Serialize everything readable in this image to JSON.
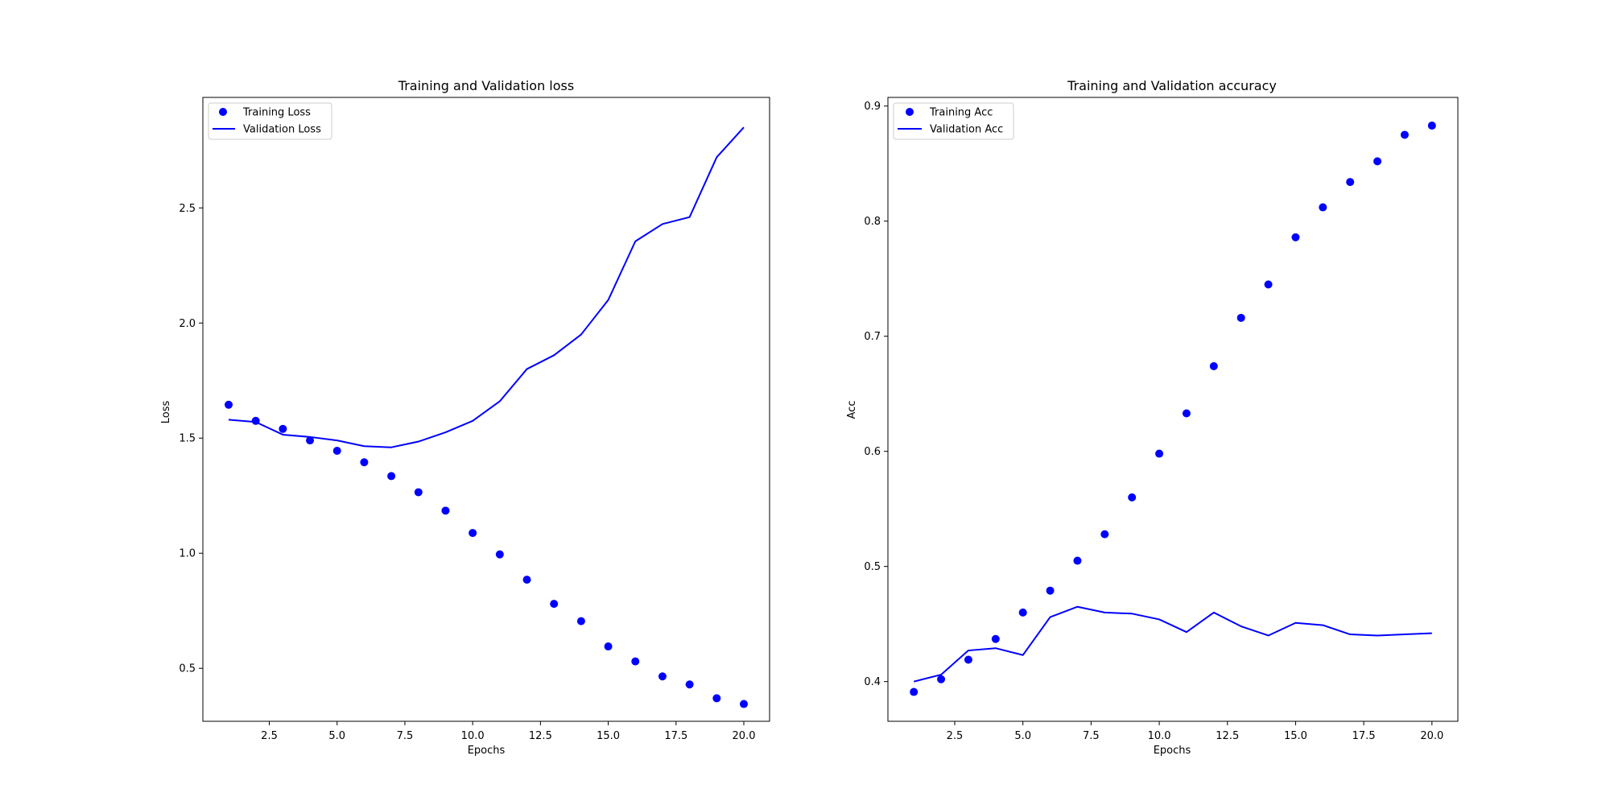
{
  "colors": {
    "series": "#0000ff",
    "axes": "#000000",
    "legend_border": "#cccccc",
    "background": "#ffffff"
  },
  "chart_data": [
    {
      "type": "line",
      "title": "Training and Validation loss",
      "xlabel": "Epochs",
      "ylabel": "Loss",
      "xlim": [
        0.05,
        20.95
      ],
      "ylim": [
        0.27,
        2.98
      ],
      "xticks": [
        2.5,
        5.0,
        7.5,
        10.0,
        12.5,
        15.0,
        17.5,
        20.0
      ],
      "xtick_labels": [
        "2.5",
        "5.0",
        "7.5",
        "10.0",
        "12.5",
        "15.0",
        "17.5",
        "20.0"
      ],
      "yticks": [
        0.5,
        1.0,
        1.5,
        2.0,
        2.5
      ],
      "ytick_labels": [
        "0.5",
        "1.0",
        "1.5",
        "2.0",
        "2.5"
      ],
      "grid": false,
      "legend_position": "upper-left",
      "x": [
        1,
        2,
        3,
        4,
        5,
        6,
        7,
        8,
        9,
        10,
        11,
        12,
        13,
        14,
        15,
        16,
        17,
        18,
        19,
        20
      ],
      "series": [
        {
          "name": "Training Loss",
          "style": "scatter",
          "values": [
            1.645,
            1.575,
            1.54,
            1.49,
            1.445,
            1.395,
            1.335,
            1.265,
            1.185,
            1.088,
            0.995,
            0.885,
            0.78,
            0.705,
            0.595,
            0.53,
            0.465,
            0.43,
            0.37,
            0.345
          ]
        },
        {
          "name": "Validation Loss",
          "style": "line",
          "values": [
            1.58,
            1.57,
            1.515,
            1.505,
            1.49,
            1.465,
            1.46,
            1.485,
            1.525,
            1.575,
            1.66,
            1.8,
            1.86,
            1.95,
            2.1,
            2.355,
            2.43,
            2.46,
            2.72,
            2.85
          ]
        }
      ]
    },
    {
      "type": "line",
      "title": "Training and Validation accuracy",
      "xlabel": "Epochs",
      "ylabel": "Acc",
      "xlim": [
        0.05,
        20.95
      ],
      "ylim": [
        0.3655,
        0.9075
      ],
      "xticks": [
        2.5,
        5.0,
        7.5,
        10.0,
        12.5,
        15.0,
        17.5,
        20.0
      ],
      "xtick_labels": [
        "2.5",
        "5.0",
        "7.5",
        "10.0",
        "12.5",
        "15.0",
        "17.5",
        "20.0"
      ],
      "yticks": [
        0.4,
        0.5,
        0.6,
        0.7,
        0.8,
        0.9
      ],
      "ytick_labels": [
        "0.4",
        "0.5",
        "0.6",
        "0.7",
        "0.8",
        "0.9"
      ],
      "grid": false,
      "legend_position": "upper-left",
      "x": [
        1,
        2,
        3,
        4,
        5,
        6,
        7,
        8,
        9,
        10,
        11,
        12,
        13,
        14,
        15,
        16,
        17,
        18,
        19,
        20
      ],
      "series": [
        {
          "name": "Training Acc",
          "style": "scatter",
          "values": [
            0.391,
            0.402,
            0.419,
            0.437,
            0.46,
            0.479,
            0.505,
            0.528,
            0.56,
            0.598,
            0.633,
            0.674,
            0.716,
            0.745,
            0.786,
            0.812,
            0.834,
            0.852,
            0.875,
            0.883
          ]
        },
        {
          "name": "Validation Acc",
          "style": "line",
          "values": [
            0.4,
            0.406,
            0.427,
            0.429,
            0.423,
            0.456,
            0.465,
            0.46,
            0.459,
            0.454,
            0.443,
            0.46,
            0.448,
            0.44,
            0.451,
            0.449,
            0.441,
            0.44,
            0.441,
            0.442
          ]
        }
      ]
    }
  ]
}
